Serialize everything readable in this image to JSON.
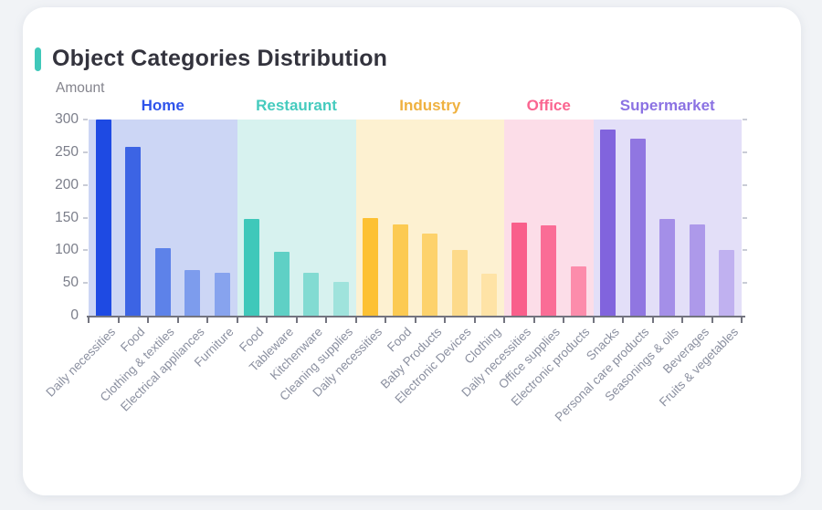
{
  "page": {
    "background": "#f1f3f6",
    "card_background": "#ffffff"
  },
  "header": {
    "title": "Object Categories Distribution",
    "accent_color": "#40c8ba",
    "title_color": "#33333d"
  },
  "axis": {
    "ylabel": "Amount",
    "y_tick_labels": [
      "0",
      "50",
      "100",
      "150",
      "200",
      "250",
      "300"
    ],
    "axis_color": "#73747f",
    "y_label_color": "#7b7e8a",
    "x_label_color": "#8b90a0"
  },
  "chart_data": {
    "type": "bar",
    "title": "Object Categories Distribution",
    "xlabel": "",
    "ylabel": "Amount",
    "ylim": [
      0,
      300
    ],
    "yticks": [
      0,
      50,
      100,
      150,
      200,
      250,
      300
    ],
    "grid": false,
    "legend_position": "group-headers-top",
    "groups": [
      {
        "name": "Home",
        "label_color": "#2f54eb",
        "band_color": "#ccd6f5",
        "bars": [
          {
            "label": "Daily necessities",
            "value": 300,
            "color": "#1e4ae3"
          },
          {
            "label": "Food",
            "value": 258,
            "color": "#3c64e4"
          },
          {
            "label": "Clothing & textiles",
            "value": 103,
            "color": "#5d82e9"
          },
          {
            "label": "Electrical appliances",
            "value": 70,
            "color": "#7d9ced"
          },
          {
            "label": "Furniture",
            "value": 65,
            "color": "#87a3ee"
          }
        ]
      },
      {
        "name": "Restaurant",
        "label_color": "#45cbbe",
        "band_color": "#d7f2ef",
        "bars": [
          {
            "label": "Food",
            "value": 148,
            "color": "#3fc8ba"
          },
          {
            "label": "Tableware",
            "value": 97,
            "color": "#5fd0c5"
          },
          {
            "label": "Kitchenware",
            "value": 66,
            "color": "#82dbd2"
          },
          {
            "label": "Cleaning supplies",
            "value": 51,
            "color": "#9fe3dc"
          }
        ]
      },
      {
        "name": "Industry",
        "label_color": "#efb13f",
        "band_color": "#fdf1d1",
        "bars": [
          {
            "label": "Daily necessities",
            "value": 150,
            "color": "#fdc133"
          },
          {
            "label": "Food",
            "value": 139,
            "color": "#fcca52"
          },
          {
            "label": "Baby Products",
            "value": 126,
            "color": "#fdd26c"
          },
          {
            "label": "Electronic Devices",
            "value": 100,
            "color": "#fdda8a"
          },
          {
            "label": "Clothing",
            "value": 64,
            "color": "#fee3a6"
          }
        ]
      },
      {
        "name": "Office",
        "label_color": "#fa6590",
        "band_color": "#fcdde8",
        "bars": [
          {
            "label": "Daily necessities",
            "value": 142,
            "color": "#f95f8b"
          },
          {
            "label": "Office supplies",
            "value": 138,
            "color": "#fa6d96"
          },
          {
            "label": "Electronic products",
            "value": 76,
            "color": "#fc8cab"
          }
        ]
      },
      {
        "name": "Supermarket",
        "label_color": "#8b72e3",
        "band_color": "#e3dff8",
        "bars": [
          {
            "label": "Snacks",
            "value": 285,
            "color": "#8164dd"
          },
          {
            "label": "Personal care products",
            "value": 271,
            "color": "#9076e1"
          },
          {
            "label": "Seasonings & oils",
            "value": 148,
            "color": "#a48fe8"
          },
          {
            "label": "Beverages",
            "value": 140,
            "color": "#ad99ea"
          },
          {
            "label": "Fruits & vegetables",
            "value": 101,
            "color": "#c0b1f0"
          }
        ]
      }
    ]
  }
}
